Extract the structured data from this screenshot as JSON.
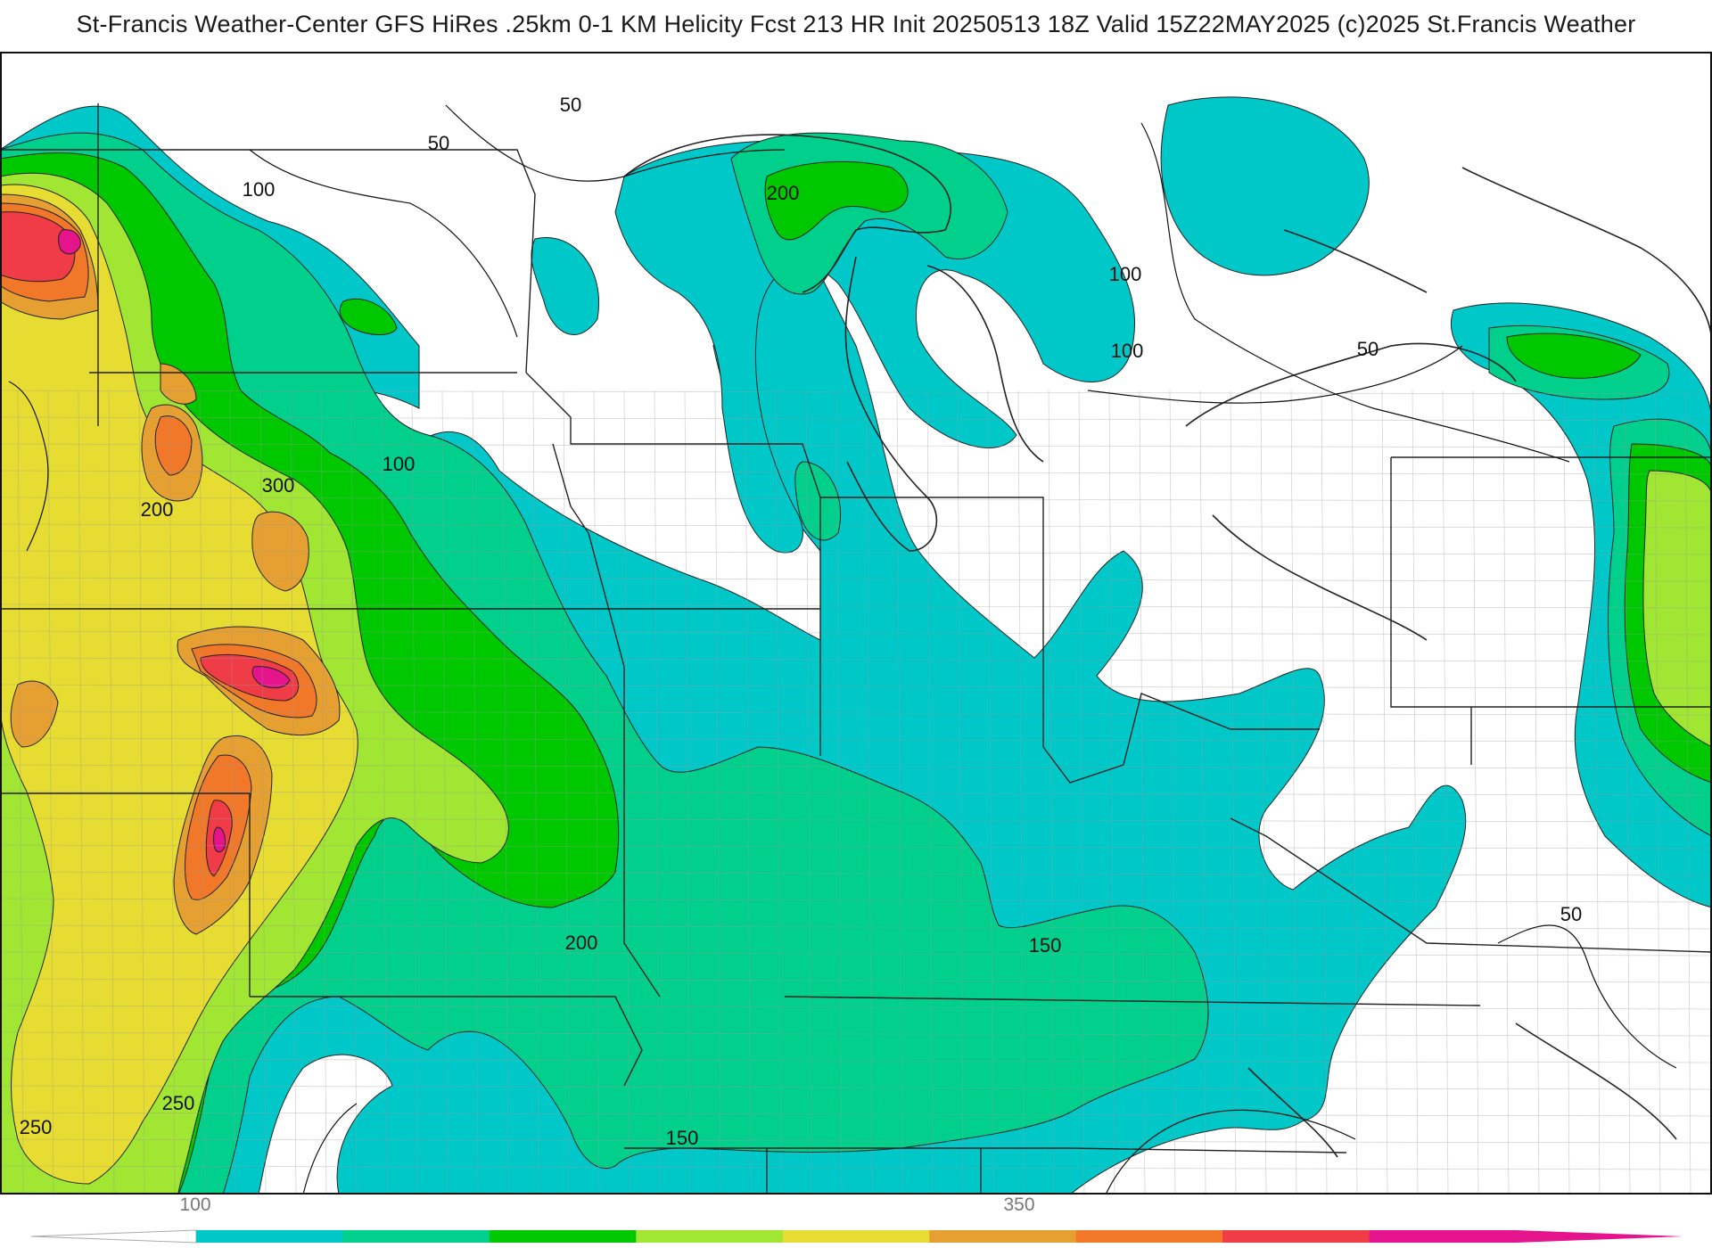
{
  "title": "St-Francis Weather-Center GFS HiRes .25km 0-1 KM Helicity Fcst 213 HR Init 20250513 18Z  Valid 15Z22MAY2025    (c)2025 St.Francis Weather",
  "colors": {
    "c100": "#00c8c8",
    "c150": "#00d08c",
    "c200": "#00c800",
    "c250": "#a0e632",
    "c300": "#e6dc32",
    "c350": "#e6a032",
    "c400": "#f07828",
    "c450": "#f03c46",
    "c500": "#e6148c"
  },
  "contour_labels": [
    {
      "id": "lbl-50-a",
      "text": "50"
    },
    {
      "id": "lbl-50-b",
      "text": "50"
    },
    {
      "id": "lbl-100-a",
      "text": "100"
    },
    {
      "id": "lbl-200-a",
      "text": "200"
    },
    {
      "id": "lbl-300",
      "text": "300"
    },
    {
      "id": "lbl-200-b",
      "text": "200"
    },
    {
      "id": "lbl-100-b",
      "text": "100"
    },
    {
      "id": "lbl-100-c",
      "text": "100"
    },
    {
      "id": "lbl-100-d",
      "text": "100"
    },
    {
      "id": "lbl-50-c",
      "text": "50"
    },
    {
      "id": "lbl-200-c",
      "text": "200"
    },
    {
      "id": "lbl-150-a",
      "text": "150"
    },
    {
      "id": "lbl-50-d",
      "text": "50"
    },
    {
      "id": "lbl-250-a",
      "text": "250"
    },
    {
      "id": "lbl-250-b",
      "text": "250"
    },
    {
      "id": "lbl-150-b",
      "text": "150"
    }
  ],
  "colorbar": {
    "tick_labels": [
      "100",
      "350"
    ],
    "bins": [
      "#00c8c8",
      "#00d08c",
      "#00c800",
      "#a0e632",
      "#e6dc32",
      "#e6a032",
      "#f07828",
      "#f03c46",
      "#e6148c"
    ]
  }
}
